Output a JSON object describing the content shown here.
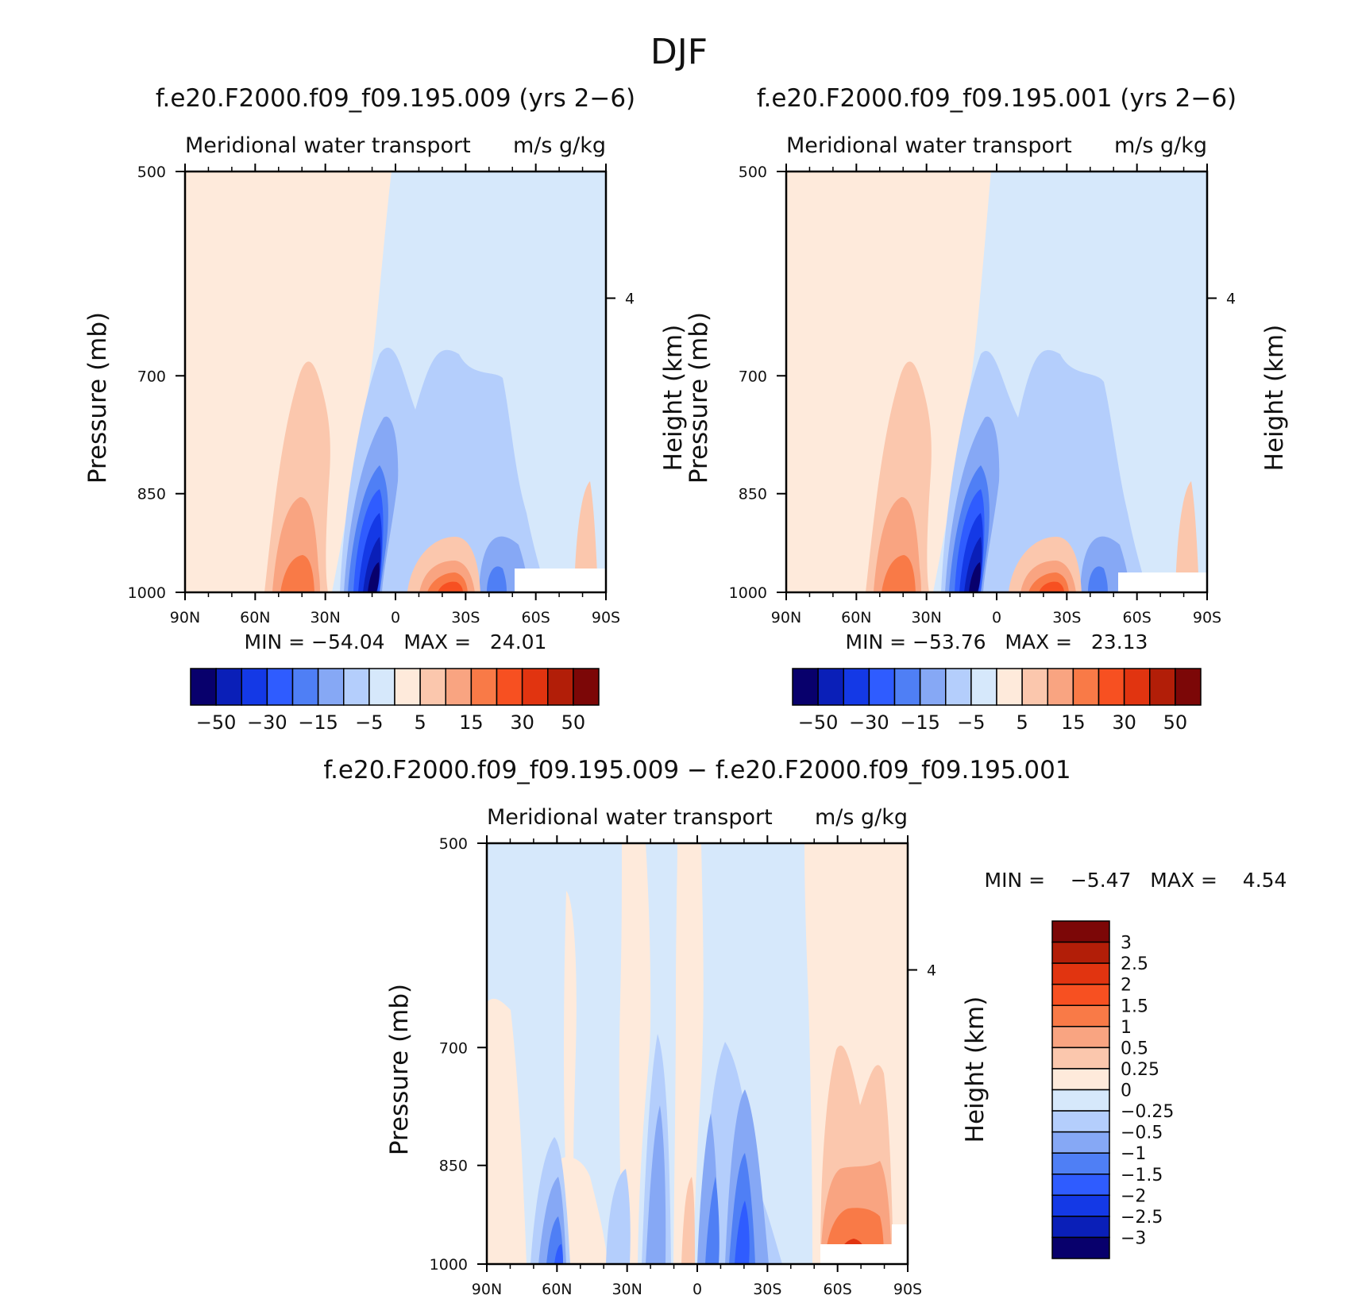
{
  "figure_title": "DJF",
  "colors": {
    "abs_levels": [
      "#08006c",
      "#0a1fb8",
      "#1439e6",
      "#2f5cff",
      "#4f7ff5",
      "#86a8f5",
      "#b4cefc",
      "#d6e8fb",
      "#feeadb",
      "#fbc7ad",
      "#f9a481",
      "#f97a47",
      "#f75021",
      "#e13410",
      "#b21e08",
      "#7c0707"
    ],
    "diff_levels": [
      "#08006c",
      "#0a1fb8",
      "#1439e6",
      "#2f5cff",
      "#4f7ff5",
      "#86a8f5",
      "#b4cefc",
      "#d6e8fb",
      "#feeadb",
      "#fbc7ad",
      "#f9a481",
      "#f97a47",
      "#f75021",
      "#e13410",
      "#b21e08",
      "#7c0707"
    ]
  },
  "chart_data": [
    {
      "type": "heatmap",
      "id": "panel1",
      "title": "f.e20.F2000.f09_f09.195.009 (yrs 2−6)",
      "subtitle": "Meridional water transport",
      "units": "m/s g/kg",
      "ylabel": "Pressure (mb)",
      "ylabel_right": "Height (km)",
      "x_ticks": [
        "90N",
        "60N",
        "30N",
        "0",
        "30S",
        "60S",
        "90S"
      ],
      "y_ticks": [
        "500",
        "700",
        "850",
        "1000"
      ],
      "y_ticks_right": [
        "4"
      ],
      "ylim": [
        1000,
        500
      ],
      "stats": "MIN = −54.04   MAX =   24.01",
      "colorbar_labels": [
        "−50",
        "−30",
        "−15",
        "−5",
        "5",
        "15",
        "30",
        "50"
      ],
      "features": [
        {
          "lat": 8,
          "p_top": 560,
          "value": -54.04
        },
        {
          "lat": 45,
          "p_top": 690,
          "value": 15
        },
        {
          "lat": -20,
          "p_top": 930,
          "value": 24.01
        },
        {
          "lat": -45,
          "p_top": 680,
          "value": -10
        }
      ]
    },
    {
      "type": "heatmap",
      "id": "panel2",
      "title": "f.e20.F2000.f09_f09.195.001 (yrs 2−6)",
      "subtitle": "Meridional water transport",
      "units": "m/s g/kg",
      "ylabel": "Pressure (mb)",
      "ylabel_right": "Height (km)",
      "x_ticks": [
        "90N",
        "60N",
        "30N",
        "0",
        "30S",
        "60S",
        "90S"
      ],
      "y_ticks": [
        "500",
        "700",
        "850",
        "1000"
      ],
      "y_ticks_right": [
        "4"
      ],
      "ylim": [
        1000,
        500
      ],
      "stats": "MIN = −53.76   MAX =   23.13",
      "colorbar_labels": [
        "−50",
        "−30",
        "−15",
        "−5",
        "5",
        "15",
        "30",
        "50"
      ],
      "features": [
        {
          "lat": 8,
          "p_top": 560,
          "value": -53.76
        },
        {
          "lat": 45,
          "p_top": 690,
          "value": 15
        },
        {
          "lat": -20,
          "p_top": 930,
          "value": 23.13
        },
        {
          "lat": -45,
          "p_top": 680,
          "value": -10
        }
      ]
    },
    {
      "type": "heatmap",
      "id": "panel3",
      "title": "f.e20.F2000.f09_f09.195.009 − f.e20.F2000.f09_f09.195.001",
      "subtitle": "Meridional water transport",
      "units": "m/s g/kg",
      "ylabel": "Pressure (mb)",
      "ylabel_right": "Height (km)",
      "x_ticks": [
        "90N",
        "60N",
        "30N",
        "0",
        "30S",
        "60S",
        "90S"
      ],
      "y_ticks": [
        "500",
        "700",
        "850",
        "1000"
      ],
      "y_ticks_right": [
        "4"
      ],
      "ylim": [
        1000,
        500
      ],
      "stats": "MIN =    −5.47   MAX =    4.54",
      "colorbar_labels": [
        "3",
        "2.5",
        "2",
        "1.5",
        "1",
        "0.5",
        "0.25",
        "0",
        "−0.25",
        "−0.5",
        "−1",
        "−1.5",
        "−2",
        "−2.5",
        "−3"
      ],
      "features": [
        {
          "lat": -65,
          "p_top": 700,
          "value": 4.54
        },
        {
          "lat": 0,
          "p_top": 700,
          "value": -1.5
        },
        {
          "lat": -18,
          "p_top": 780,
          "value": -2
        },
        {
          "lat": 55,
          "p_top": 820,
          "value": -1
        }
      ]
    }
  ]
}
